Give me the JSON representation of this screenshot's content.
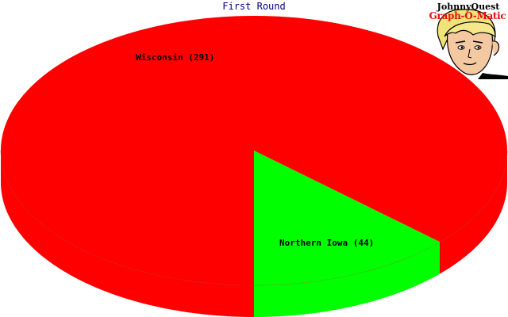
{
  "chart_data": {
    "type": "pie",
    "title": "First Round",
    "slices": [
      {
        "label": "Wisconsin (291)",
        "category": "Wisconsin",
        "value": 291,
        "color": "#ff0000"
      },
      {
        "label": "Northern Iowa (44)",
        "category": "Northern Iowa",
        "value": 44,
        "color": "#00ff00"
      }
    ],
    "three_d": true,
    "legend": "none",
    "grid": false
  },
  "logo": {
    "line1": "JohnnyQuest",
    "line2": "Graph-O-Matic"
  }
}
